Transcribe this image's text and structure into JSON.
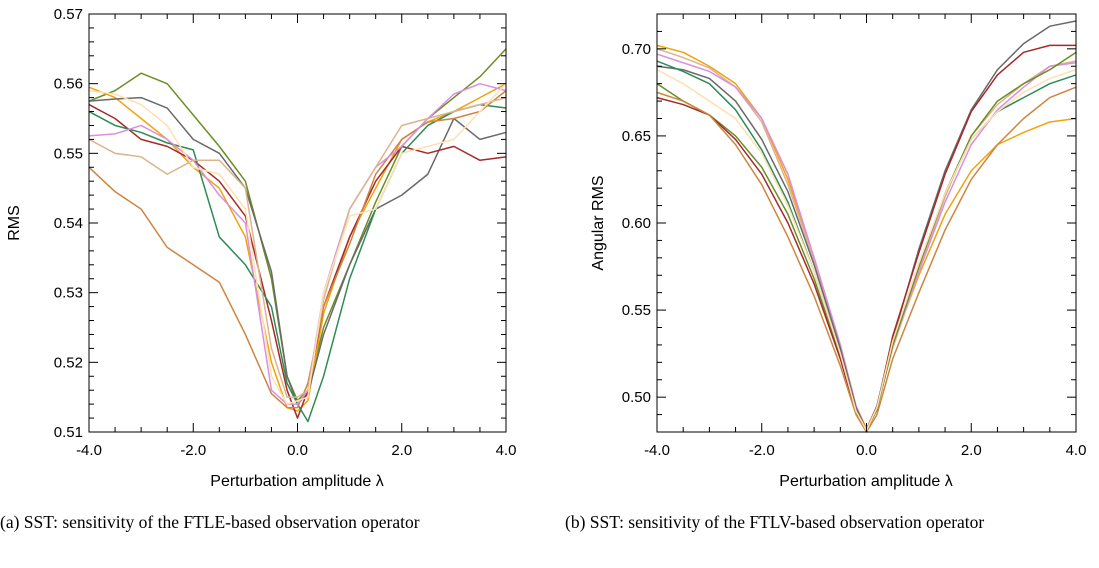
{
  "chart_data": [
    {
      "type": "line",
      "id": "a",
      "xlabel": "Perturbation amplitude λ",
      "ylabel": "RMS",
      "xlim": [
        -4.0,
        4.0
      ],
      "ylim": [
        0.51,
        0.57
      ],
      "xticks": [
        -4.0,
        -2.0,
        0.0,
        2.0,
        4.0
      ],
      "xtick_labels": [
        "-4.0",
        "-2.0",
        "0.0",
        "2.0",
        "4.0"
      ],
      "yticks": [
        0.51,
        0.52,
        0.53,
        0.54,
        0.55,
        0.56,
        0.57
      ],
      "ytick_labels": [
        "0.51",
        "0.52",
        "0.53",
        "0.54",
        "0.55",
        "0.56",
        "0.57"
      ],
      "grid": false,
      "caption": "(a) SST: sensitivity of the FTLE-based observation operator",
      "series": [
        {
          "color": "#6b8e23",
          "x": [
            -4,
            -3.5,
            -3,
            -2.5,
            -2,
            -1.5,
            -1,
            -0.5,
            -0.2,
            0,
            0.2,
            0.5,
            1,
            1.5,
            2,
            2.5,
            3,
            3.5,
            4
          ],
          "y": [
            0.5575,
            0.559,
            0.5615,
            0.56,
            0.5555,
            0.551,
            0.546,
            0.532,
            0.518,
            0.5145,
            0.516,
            0.525,
            0.534,
            0.543,
            0.551,
            0.555,
            0.558,
            0.561,
            0.565
          ]
        },
        {
          "color": "#f0a30a",
          "x": [
            -4,
            -3.5,
            -3,
            -2.5,
            -2,
            -1.5,
            -1,
            -0.5,
            -0.2,
            0,
            0.2,
            0.5,
            1,
            1.5,
            2,
            2.5,
            3,
            3.5,
            4
          ],
          "y": [
            0.5595,
            0.558,
            0.555,
            0.552,
            0.548,
            0.545,
            0.538,
            0.52,
            0.5135,
            0.513,
            0.5145,
            0.527,
            0.538,
            0.545,
            0.552,
            0.5545,
            0.556,
            0.558,
            0.56
          ]
        },
        {
          "color": "#696969",
          "x": [
            -4,
            -3.5,
            -3,
            -2.5,
            -2,
            -1.5,
            -1,
            -0.5,
            -0.2,
            0,
            0.2,
            0.5,
            1,
            1.5,
            2,
            2.5,
            3,
            3.5,
            4
          ],
          "y": [
            0.5575,
            0.5578,
            0.558,
            0.5565,
            0.552,
            0.55,
            0.545,
            0.533,
            0.518,
            0.514,
            0.5155,
            0.524,
            0.534,
            0.542,
            0.544,
            0.547,
            0.555,
            0.552,
            0.553
          ]
        },
        {
          "color": "#a52a2a",
          "x": [
            -4,
            -3.5,
            -3,
            -2.5,
            -2,
            -1.5,
            -1,
            -0.5,
            -0.2,
            0,
            0.2,
            0.5,
            1,
            1.5,
            2,
            2.5,
            3,
            3.5,
            4
          ],
          "y": [
            0.557,
            0.555,
            0.552,
            0.551,
            0.549,
            0.546,
            0.541,
            0.526,
            0.516,
            0.512,
            0.516,
            0.528,
            0.538,
            0.546,
            0.551,
            0.55,
            0.551,
            0.549,
            0.5495
          ]
        },
        {
          "color": "#2e8b57",
          "x": [
            -4,
            -3.5,
            -3,
            -2.5,
            -2,
            -1.5,
            -1,
            -0.5,
            -0.2,
            0,
            0.2,
            0.5,
            1,
            1.5,
            2,
            2.5,
            3,
            3.5,
            4
          ],
          "y": [
            0.556,
            0.554,
            0.553,
            0.5515,
            0.5505,
            0.538,
            0.534,
            0.528,
            0.517,
            0.514,
            0.5115,
            0.518,
            0.532,
            0.542,
            0.55,
            0.554,
            0.556,
            0.557,
            0.5565
          ]
        },
        {
          "color": "#cd853f",
          "x": [
            -4,
            -3.5,
            -3,
            -2.5,
            -2,
            -1.5,
            -1,
            -0.5,
            -0.2,
            0,
            0.2,
            0.5,
            1,
            1.5,
            2,
            2.5,
            3,
            3.5,
            4
          ],
          "y": [
            0.548,
            0.5445,
            0.542,
            0.5365,
            0.534,
            0.5315,
            0.524,
            0.5155,
            0.5135,
            0.5135,
            0.517,
            0.528,
            0.537,
            0.547,
            0.552,
            0.5545,
            0.555,
            0.556,
            0.559
          ]
        },
        {
          "color": "#da8fe0",
          "x": [
            -4,
            -3.5,
            -3,
            -2.5,
            -2,
            -1.5,
            -1,
            -0.5,
            -0.2,
            0,
            0.2,
            0.5,
            1,
            1.5,
            2,
            2.5,
            3,
            3.5,
            4
          ],
          "y": [
            0.5525,
            0.5528,
            0.554,
            0.552,
            0.549,
            0.544,
            0.54,
            0.516,
            0.514,
            0.514,
            0.516,
            0.53,
            0.542,
            0.548,
            0.551,
            0.555,
            0.5585,
            0.56,
            0.559
          ]
        },
        {
          "color": "#dcb48c",
          "x": [
            -4,
            -3.5,
            -3,
            -2.5,
            -2,
            -1.5,
            -1,
            -0.5,
            -0.2,
            0,
            0.2,
            0.5,
            1,
            1.5,
            2,
            2.5,
            3,
            3.5,
            4
          ],
          "y": [
            0.552,
            0.55,
            0.5495,
            0.547,
            0.549,
            0.549,
            0.545,
            0.522,
            0.515,
            0.515,
            0.516,
            0.529,
            0.542,
            0.548,
            0.554,
            0.555,
            0.556,
            0.557,
            0.558
          ]
        },
        {
          "color": "#ffe0b2",
          "x": [
            -4,
            -3.5,
            -3,
            -2.5,
            -2,
            -1.5,
            -1,
            -0.5,
            -0.2,
            0,
            0.2,
            0.5,
            1,
            1.5,
            2,
            2.5,
            3,
            3.5,
            4
          ],
          "y": [
            0.559,
            0.5585,
            0.557,
            0.554,
            0.548,
            0.547,
            0.542,
            0.518,
            0.514,
            0.5145,
            0.515,
            0.53,
            0.541,
            0.542,
            0.55,
            0.551,
            0.552,
            0.556,
            0.56
          ]
        }
      ]
    },
    {
      "type": "line",
      "id": "b",
      "xlabel": "Perturbation amplitude λ",
      "ylabel": "Angular RMS",
      "xlim": [
        -4.0,
        4.0
      ],
      "ylim": [
        0.48,
        0.72
      ],
      "xticks": [
        -4.0,
        -2.0,
        0.0,
        2.0,
        4.0
      ],
      "xtick_labels": [
        "-4.0",
        "-2.0",
        "0.0",
        "2.0",
        "4.0"
      ],
      "yticks": [
        0.5,
        0.55,
        0.6,
        0.65,
        0.7
      ],
      "ytick_labels": [
        "0.50",
        "0.55",
        "0.60",
        "0.65",
        "0.70"
      ],
      "grid": false,
      "caption": "(b) SST: sensitivity of the FTLV-based observation operator",
      "series": [
        {
          "color": "#f0a30a",
          "x": [
            -4,
            -3.5,
            -3,
            -2.5,
            -2,
            -1.5,
            -1,
            -0.5,
            -0.2,
            0,
            0.2,
            0.5,
            1,
            1.5,
            2,
            2.5,
            3,
            3.5,
            4
          ],
          "y": [
            0.702,
            0.698,
            0.69,
            0.68,
            0.66,
            0.625,
            0.58,
            0.53,
            0.495,
            0.482,
            0.495,
            0.53,
            0.57,
            0.605,
            0.63,
            0.645,
            0.652,
            0.658,
            0.66
          ]
        },
        {
          "color": "#dcb48c",
          "x": [
            -4,
            -3.5,
            -3,
            -2.5,
            -2,
            -1.5,
            -1,
            -0.5,
            -0.2,
            0,
            0.2,
            0.5,
            1,
            1.5,
            2,
            2.5,
            3,
            3.5,
            4
          ],
          "y": [
            0.7,
            0.695,
            0.689,
            0.678,
            0.658,
            0.622,
            0.578,
            0.528,
            0.494,
            0.481,
            0.494,
            0.528,
            0.572,
            0.615,
            0.65,
            0.668,
            0.68,
            0.69,
            0.693
          ]
        },
        {
          "color": "#da8fe0",
          "x": [
            -4,
            -3.5,
            -3,
            -2.5,
            -2,
            -1.5,
            -1,
            -0.5,
            -0.2,
            0,
            0.2,
            0.5,
            1,
            1.5,
            2,
            2.5,
            3,
            3.5,
            4
          ],
          "y": [
            0.697,
            0.692,
            0.687,
            0.678,
            0.66,
            0.628,
            0.58,
            0.53,
            0.495,
            0.481,
            0.495,
            0.53,
            0.572,
            0.612,
            0.645,
            0.665,
            0.678,
            0.69,
            0.692
          ]
        },
        {
          "color": "#696969",
          "x": [
            -4,
            -3.5,
            -3,
            -2.5,
            -2,
            -1.5,
            -1,
            -0.5,
            -0.2,
            0,
            0.2,
            0.5,
            1,
            1.5,
            2,
            2.5,
            3,
            3.5,
            4
          ],
          "y": [
            0.69,
            0.688,
            0.683,
            0.67,
            0.648,
            0.618,
            0.576,
            0.528,
            0.494,
            0.481,
            0.495,
            0.533,
            0.585,
            0.63,
            0.665,
            0.688,
            0.703,
            0.713,
            0.716
          ]
        },
        {
          "color": "#2e8b57",
          "x": [
            -4,
            -3.5,
            -3,
            -2.5,
            -2,
            -1.5,
            -1,
            -0.5,
            -0.2,
            0,
            0.2,
            0.5,
            1,
            1.5,
            2,
            2.5,
            3,
            3.5,
            4
          ],
          "y": [
            0.693,
            0.687,
            0.68,
            0.665,
            0.642,
            0.612,
            0.572,
            0.525,
            0.492,
            0.481,
            0.493,
            0.53,
            0.575,
            0.617,
            0.648,
            0.664,
            0.672,
            0.68,
            0.685
          ]
        },
        {
          "color": "#6b8e23",
          "x": [
            -4,
            -3.5,
            -3,
            -2.5,
            -2,
            -1.5,
            -1,
            -0.5,
            -0.2,
            0,
            0.2,
            0.5,
            1,
            1.5,
            2,
            2.5,
            3,
            3.5,
            4
          ],
          "y": [
            0.68,
            0.67,
            0.662,
            0.65,
            0.632,
            0.605,
            0.568,
            0.523,
            0.491,
            0.481,
            0.493,
            0.53,
            0.575,
            0.617,
            0.65,
            0.67,
            0.68,
            0.688,
            0.698
          ]
        },
        {
          "color": "#a52a2a",
          "x": [
            -4,
            -3.5,
            -3,
            -2.5,
            -2,
            -1.5,
            -1,
            -0.5,
            -0.2,
            0,
            0.2,
            0.5,
            1,
            1.5,
            2,
            2.5,
            3,
            3.5,
            4
          ],
          "y": [
            0.672,
            0.668,
            0.662,
            0.648,
            0.628,
            0.6,
            0.565,
            0.522,
            0.491,
            0.481,
            0.494,
            0.535,
            0.583,
            0.628,
            0.664,
            0.685,
            0.698,
            0.702,
            0.702
          ]
        },
        {
          "color": "#cd853f",
          "x": [
            -4,
            -3.5,
            -3,
            -2.5,
            -2,
            -1.5,
            -1,
            -0.5,
            -0.2,
            0,
            0.2,
            0.5,
            1,
            1.5,
            2,
            2.5,
            3,
            3.5,
            4
          ],
          "y": [
            0.675,
            0.67,
            0.662,
            0.645,
            0.622,
            0.592,
            0.558,
            0.518,
            0.49,
            0.48,
            0.49,
            0.522,
            0.56,
            0.596,
            0.625,
            0.645,
            0.66,
            0.672,
            0.678
          ]
        },
        {
          "color": "#ffe0b2",
          "x": [
            -4,
            -3.5,
            -3,
            -2.5,
            -2,
            -1.5,
            -1,
            -0.5,
            -0.2,
            0,
            0.2,
            0.5,
            1,
            1.5,
            2,
            2.5,
            3,
            3.5,
            4
          ],
          "y": [
            0.688,
            0.68,
            0.67,
            0.66,
            0.64,
            0.61,
            0.572,
            0.525,
            0.492,
            0.481,
            0.494,
            0.532,
            0.577,
            0.617,
            0.648,
            0.664,
            0.675,
            0.683,
            0.688
          ]
        }
      ]
    }
  ]
}
